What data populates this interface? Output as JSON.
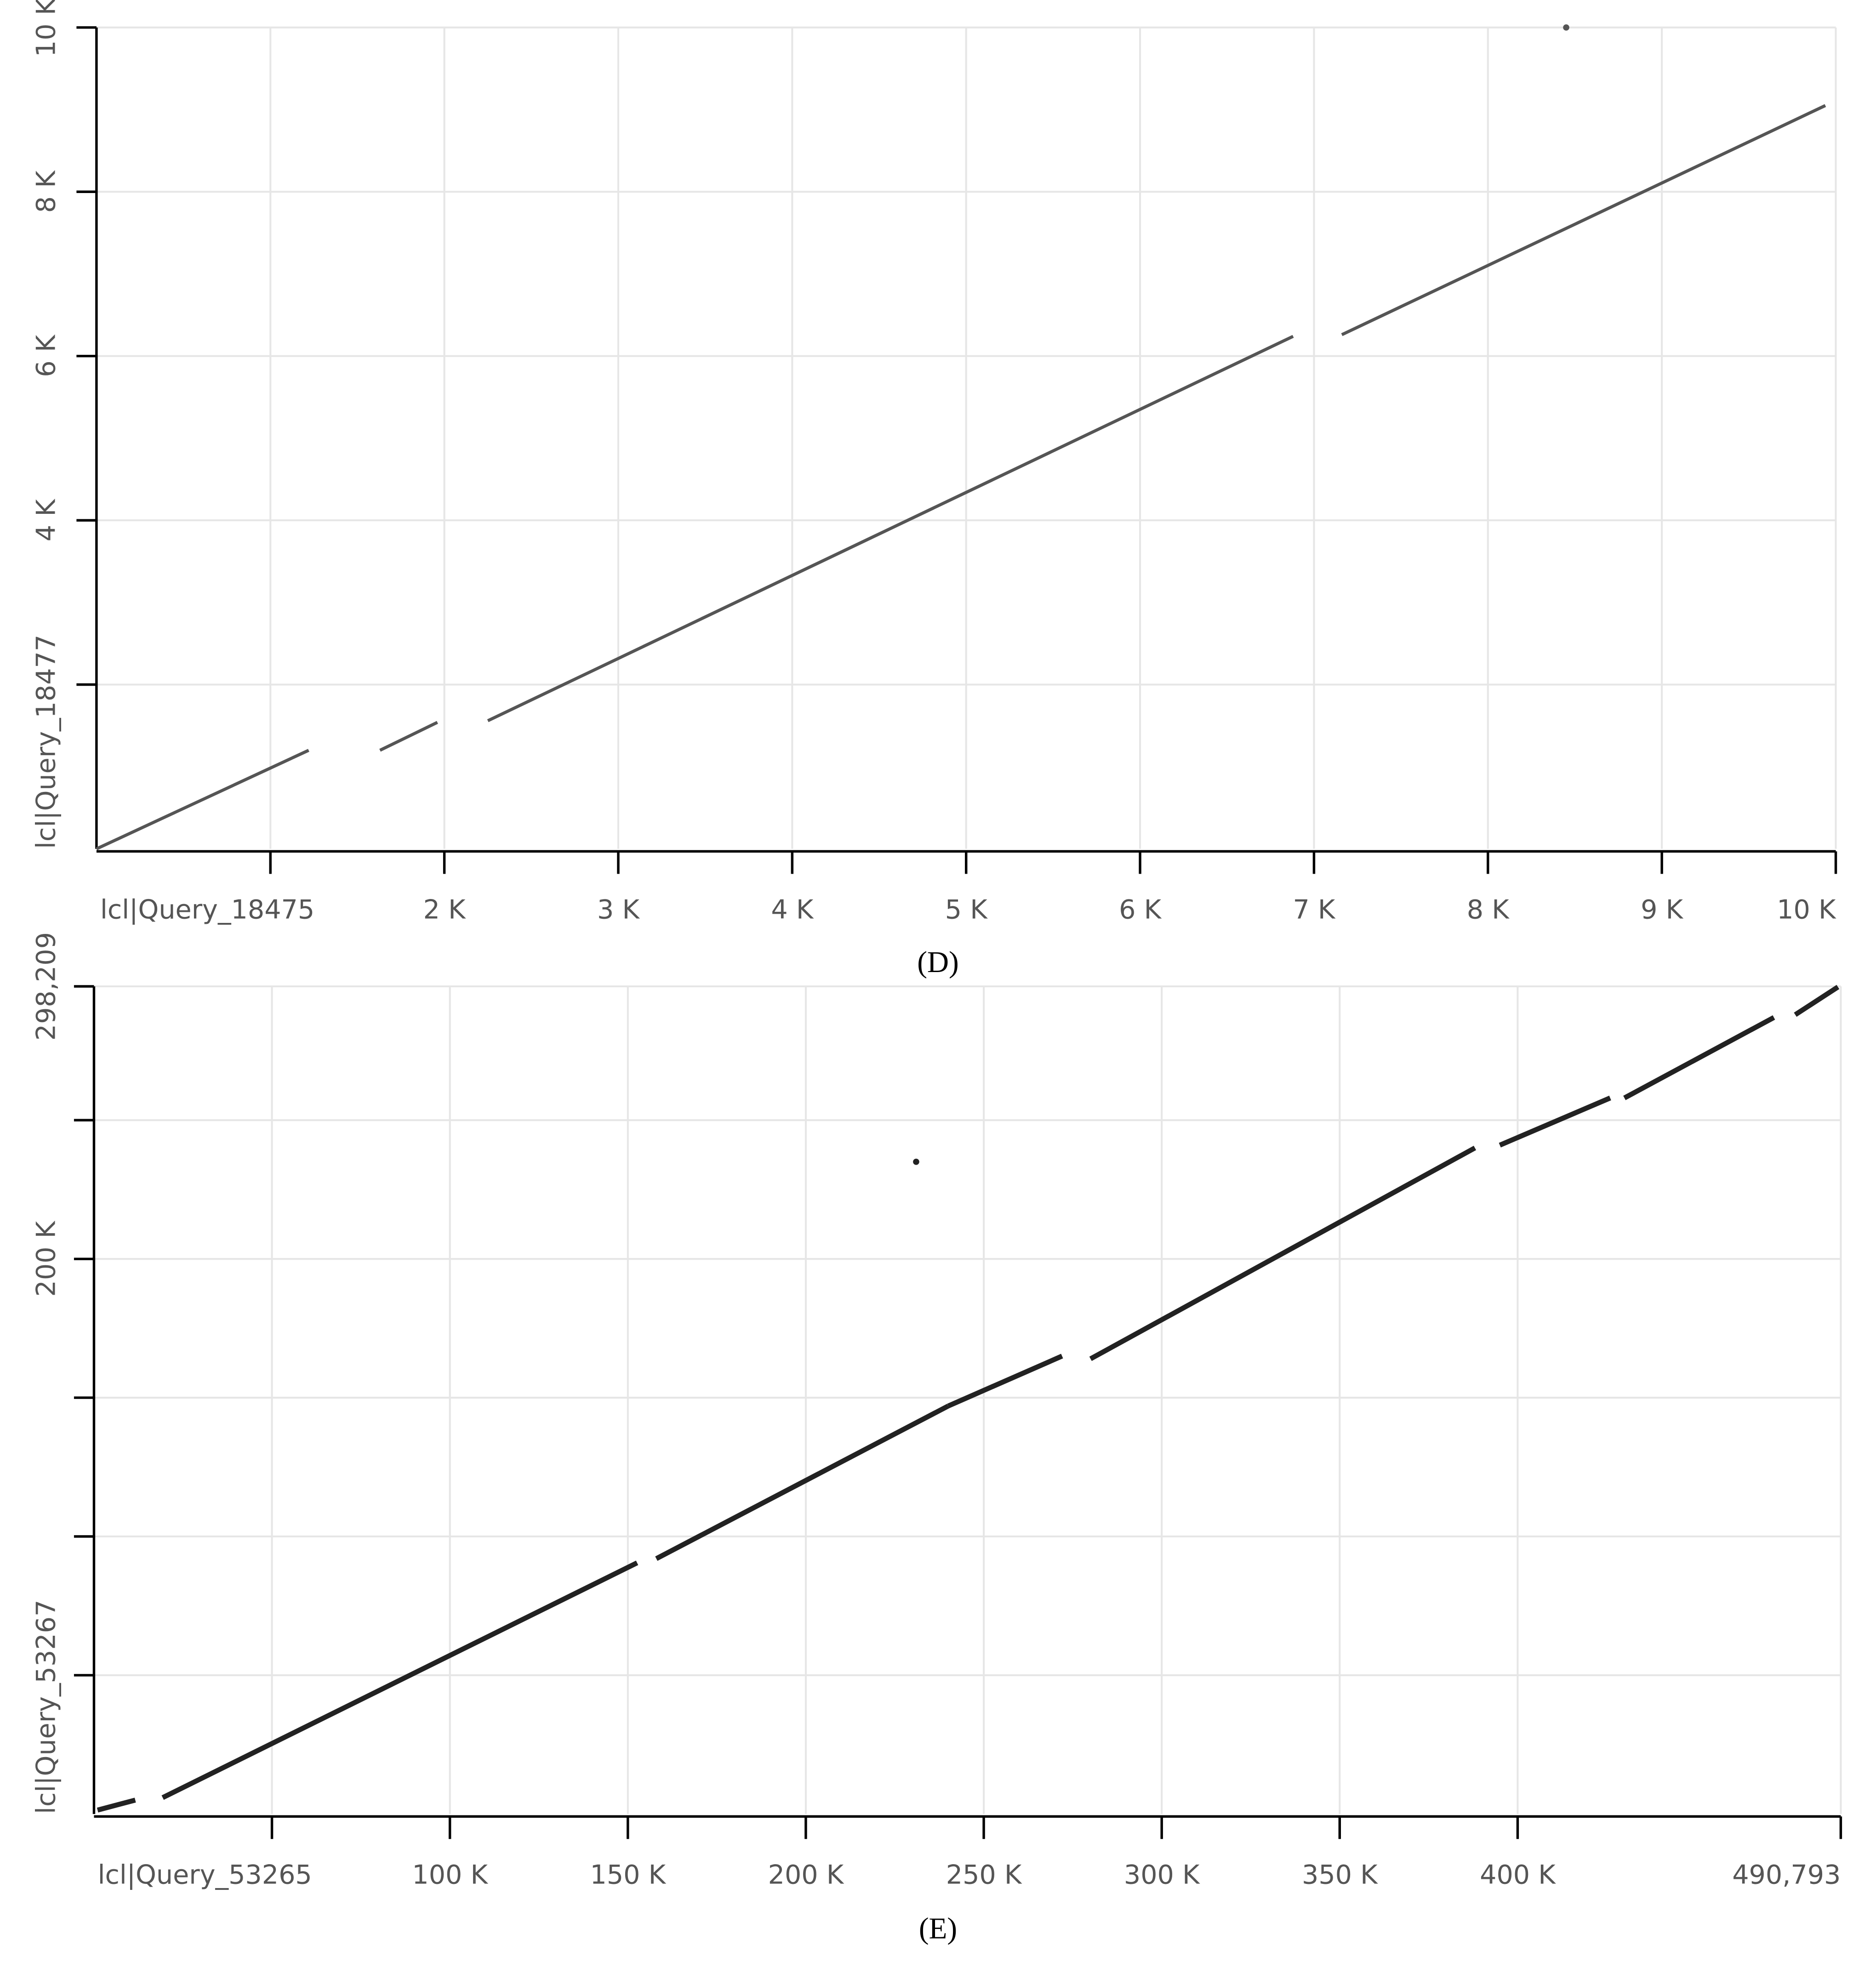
{
  "chart_data": [
    {
      "type": "line",
      "caption": "(D)",
      "x_label": "lcl|Query_18475",
      "y_label": "lcl|Query_18477",
      "color": "#555555",
      "grid": true,
      "xlim": [
        0,
        10000
      ],
      "ylim": [
        0,
        10000
      ],
      "xticks": [
        {
          "value": 1000,
          "label": null
        },
        {
          "value": 2000,
          "label": "2 K"
        },
        {
          "value": 3000,
          "label": "3 K"
        },
        {
          "value": 4000,
          "label": "4 K"
        },
        {
          "value": 5000,
          "label": "5 K"
        },
        {
          "value": 6000,
          "label": "6 K"
        },
        {
          "value": 7000,
          "label": "7 K"
        },
        {
          "value": 8000,
          "label": "8 K"
        },
        {
          "value": 9000,
          "label": "9 K"
        },
        {
          "value": 10000,
          "label": "10 K"
        }
      ],
      "yticks": [
        {
          "value": 2000,
          "label": null
        },
        {
          "value": 4000,
          "label": "4 K"
        },
        {
          "value": 6000,
          "label": "6 K"
        },
        {
          "value": 8000,
          "label": "8 K"
        },
        {
          "value": 10000,
          "label": "10 K"
        }
      ],
      "series": [
        {
          "x": [
            0,
            1220
          ],
          "values": [
            0,
            1200
          ]
        },
        {
          "x": [
            1630,
            1960
          ],
          "values": [
            1200,
            1540
          ]
        },
        {
          "x": [
            2250,
            6880
          ],
          "values": [
            1560,
            6240
          ]
        },
        {
          "x": [
            7160,
            9940
          ],
          "values": [
            6260,
            9050
          ]
        },
        {
          "x": [
            8450
          ],
          "values": [
            10000
          ]
        }
      ]
    },
    {
      "type": "line",
      "caption": "(E)",
      "x_label": "lcl|Query_53265",
      "y_label": "lcl|Query_53267",
      "color": "#222222",
      "grid": true,
      "xlim": [
        0,
        490793
      ],
      "ylim": [
        0,
        298209
      ],
      "xticks": [
        {
          "value": 50000,
          "label": null
        },
        {
          "value": 100000,
          "label": "100 K"
        },
        {
          "value": 150000,
          "label": "150 K"
        },
        {
          "value": 200000,
          "label": "200 K"
        },
        {
          "value": 250000,
          "label": "250 K"
        },
        {
          "value": 300000,
          "label": "300 K"
        },
        {
          "value": 350000,
          "label": "350 K"
        },
        {
          "value": 400000,
          "label": "400 K"
        },
        {
          "value": 490793,
          "label": "490,793"
        }
      ],
      "yticks": [
        {
          "value": 50000,
          "label": null
        },
        {
          "value": 100000,
          "label": null
        },
        {
          "value": 150000,
          "label": null
        },
        {
          "value": 200000,
          "label": "200 K"
        },
        {
          "value": 250000,
          "label": null
        },
        {
          "value": 298209,
          "label": "298,209"
        }
      ],
      "series": [
        {
          "x": [
            1000,
            11600
          ],
          "values": [
            1400,
            5000
          ]
        },
        {
          "x": [
            19300,
            152600
          ],
          "values": [
            5900,
            90500
          ]
        },
        {
          "x": [
            158000,
            240000
          ],
          "values": [
            92000,
            147000
          ]
        },
        {
          "x": [
            240000,
            272000
          ],
          "values": [
            147000,
            165000
          ]
        },
        {
          "x": [
            280000,
            388000
          ],
          "values": [
            164000,
            240000
          ]
        },
        {
          "x": [
            395000,
            426000
          ],
          "values": [
            241000,
            258000
          ]
        },
        {
          "x": [
            430000,
            472000
          ],
          "values": [
            258000,
            287000
          ]
        },
        {
          "x": [
            478000,
            490000
          ],
          "values": [
            288000,
            298000
          ]
        },
        {
          "x": [
            231000
          ],
          "values": [
            235000
          ]
        }
      ]
    }
  ]
}
